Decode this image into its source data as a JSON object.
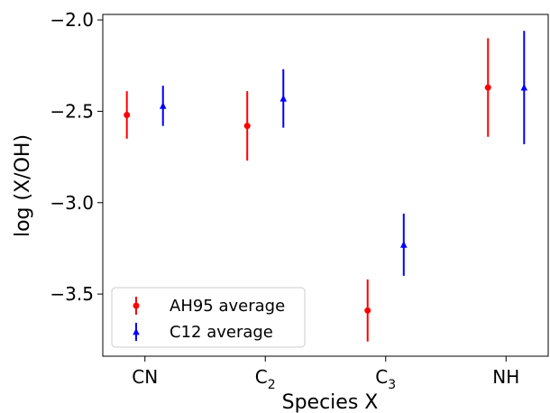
{
  "chart_data": {
    "type": "scatter",
    "categories": [
      {
        "main": "CN",
        "sub": ""
      },
      {
        "main": "C",
        "sub": "2"
      },
      {
        "main": "C",
        "sub": "3"
      },
      {
        "main": "NH",
        "sub": ""
      }
    ],
    "xlabel": "Species X",
    "ylabel": "log (X/OH)",
    "ylim": [
      -3.84,
      -1.97
    ],
    "yticks": [
      -3.5,
      -3.0,
      -2.5,
      -2.0
    ],
    "ytick_labels": [
      "−3.5",
      "−3.0",
      "−2.5",
      "−2.0"
    ],
    "legend_position": "lower-left",
    "series": [
      {
        "name": "AH95 average",
        "marker": "circle",
        "color": "#ff0000",
        "offset": -0.15,
        "values": [
          -2.52,
          -2.58,
          -3.59,
          -2.37
        ],
        "err_low": [
          -2.65,
          -2.77,
          -3.76,
          -2.64
        ],
        "err_high": [
          -2.39,
          -2.39,
          -3.42,
          -2.1
        ]
      },
      {
        "name": "C12 average",
        "marker": "triangle",
        "color": "#0000ff",
        "offset": 0.15,
        "values": [
          -2.47,
          -2.43,
          -3.23,
          -2.37
        ],
        "err_low": [
          -2.58,
          -2.59,
          -3.4,
          -2.68
        ],
        "err_high": [
          -2.36,
          -2.27,
          -3.06,
          -2.06
        ]
      }
    ]
  }
}
